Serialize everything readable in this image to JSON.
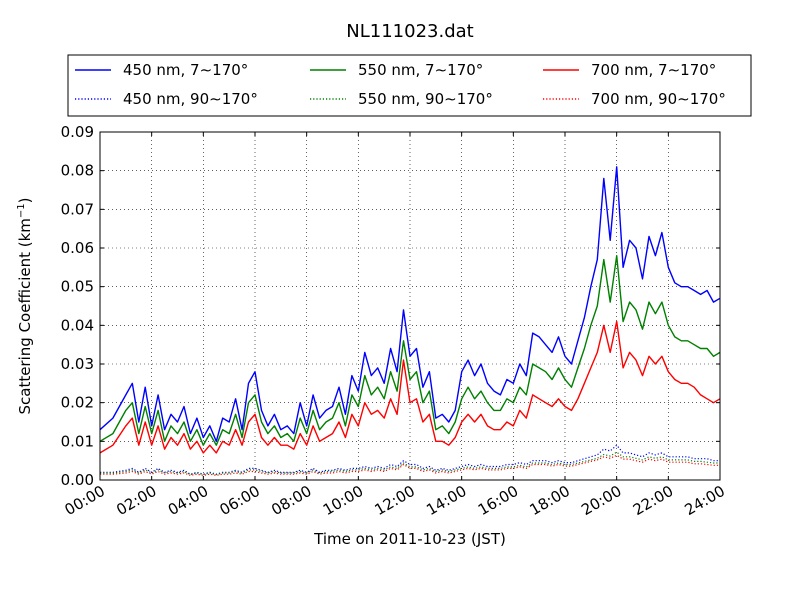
{
  "chart_data": {
    "type": "line",
    "title": "NL111023.dat",
    "xlabel": "Time on 2011-10-23 (JST)",
    "ylabel_main": "Scattering Coefficient (km",
    "ylabel_sup": "−1",
    "ylabel_tail": ")",
    "xlim": [
      0,
      24
    ],
    "ylim": [
      0,
      0.09
    ],
    "x_ticks": [
      0,
      2,
      4,
      6,
      8,
      10,
      12,
      14,
      16,
      18,
      20,
      22,
      24
    ],
    "x_tick_labels": [
      "00:00",
      "02:00",
      "04:00",
      "06:00",
      "08:00",
      "10:00",
      "12:00",
      "14:00",
      "16:00",
      "18:00",
      "20:00",
      "22:00",
      "24:00"
    ],
    "y_ticks": [
      0,
      0.01,
      0.02,
      0.03,
      0.04,
      0.05,
      0.06,
      0.07,
      0.08,
      0.09
    ],
    "y_tick_labels": [
      "0.00",
      "0.01",
      "0.02",
      "0.03",
      "0.04",
      "0.05",
      "0.06",
      "0.07",
      "0.08",
      "0.09"
    ],
    "grid": true,
    "legend_position": "top, above plot, 3 columns",
    "x": [
      0,
      0.5,
      1,
      1.25,
      1.5,
      1.75,
      2,
      2.25,
      2.5,
      2.75,
      3,
      3.25,
      3.5,
      3.75,
      4,
      4.25,
      4.5,
      4.75,
      5,
      5.25,
      5.5,
      5.75,
      6,
      6.25,
      6.5,
      6.75,
      7,
      7.25,
      7.5,
      7.75,
      8,
      8.25,
      8.5,
      8.75,
      9,
      9.25,
      9.5,
      9.75,
      10,
      10.25,
      10.5,
      10.75,
      11,
      11.25,
      11.5,
      11.75,
      12,
      12.25,
      12.5,
      12.75,
      13,
      13.25,
      13.5,
      13.75,
      14,
      14.25,
      14.5,
      14.75,
      15,
      15.25,
      15.5,
      15.75,
      16,
      16.25,
      16.5,
      16.75,
      17,
      17.25,
      17.5,
      17.75,
      18,
      18.25,
      18.5,
      18.75,
      19,
      19.25,
      19.5,
      19.75,
      20,
      20.25,
      20.5,
      20.75,
      21,
      21.25,
      21.5,
      21.75,
      22,
      22.25,
      22.5,
      22.75,
      23,
      23.25,
      23.5,
      23.75,
      24
    ],
    "series": [
      {
        "name": "450 nm, 7∼170°",
        "color": "#0000ff",
        "style": "solid",
        "values": [
          0.013,
          0.016,
          0.022,
          0.025,
          0.015,
          0.024,
          0.014,
          0.022,
          0.013,
          0.017,
          0.015,
          0.019,
          0.012,
          0.016,
          0.011,
          0.014,
          0.01,
          0.016,
          0.015,
          0.021,
          0.013,
          0.025,
          0.028,
          0.018,
          0.014,
          0.017,
          0.013,
          0.014,
          0.012,
          0.02,
          0.014,
          0.022,
          0.016,
          0.018,
          0.019,
          0.024,
          0.017,
          0.027,
          0.023,
          0.033,
          0.027,
          0.029,
          0.025,
          0.034,
          0.028,
          0.044,
          0.032,
          0.034,
          0.024,
          0.028,
          0.016,
          0.017,
          0.015,
          0.018,
          0.028,
          0.031,
          0.027,
          0.03,
          0.025,
          0.023,
          0.022,
          0.026,
          0.025,
          0.03,
          0.027,
          0.038,
          0.037,
          0.035,
          0.033,
          0.037,
          0.032,
          0.03,
          0.036,
          0.042,
          0.05,
          0.057,
          0.078,
          0.062,
          0.081,
          0.055,
          0.062,
          0.06,
          0.052,
          0.063,
          0.058,
          0.064,
          0.055,
          0.051,
          0.05,
          0.05,
          0.049,
          0.048,
          0.049,
          0.046,
          0.047
        ]
      },
      {
        "name": "550 nm, 7∼170°",
        "color": "#008000",
        "style": "solid",
        "values": [
          0.01,
          0.012,
          0.018,
          0.02,
          0.012,
          0.019,
          0.012,
          0.018,
          0.01,
          0.014,
          0.012,
          0.015,
          0.01,
          0.013,
          0.009,
          0.012,
          0.009,
          0.013,
          0.012,
          0.017,
          0.011,
          0.02,
          0.022,
          0.015,
          0.012,
          0.014,
          0.011,
          0.012,
          0.01,
          0.016,
          0.012,
          0.018,
          0.013,
          0.015,
          0.016,
          0.02,
          0.014,
          0.022,
          0.019,
          0.027,
          0.022,
          0.024,
          0.021,
          0.028,
          0.023,
          0.036,
          0.026,
          0.028,
          0.02,
          0.023,
          0.013,
          0.014,
          0.012,
          0.015,
          0.021,
          0.024,
          0.021,
          0.023,
          0.02,
          0.018,
          0.018,
          0.021,
          0.02,
          0.024,
          0.022,
          0.03,
          0.029,
          0.028,
          0.026,
          0.029,
          0.026,
          0.024,
          0.029,
          0.034,
          0.04,
          0.045,
          0.057,
          0.046,
          0.058,
          0.041,
          0.046,
          0.044,
          0.039,
          0.046,
          0.043,
          0.046,
          0.04,
          0.037,
          0.036,
          0.036,
          0.035,
          0.034,
          0.034,
          0.032,
          0.033
        ]
      },
      {
        "name": "700 nm, 7∼170°",
        "color": "#ff0000",
        "style": "solid",
        "values": [
          0.007,
          0.009,
          0.014,
          0.016,
          0.009,
          0.015,
          0.009,
          0.014,
          0.008,
          0.011,
          0.009,
          0.012,
          0.008,
          0.01,
          0.007,
          0.009,
          0.007,
          0.01,
          0.009,
          0.013,
          0.009,
          0.015,
          0.017,
          0.011,
          0.009,
          0.011,
          0.009,
          0.009,
          0.008,
          0.012,
          0.009,
          0.014,
          0.01,
          0.011,
          0.012,
          0.015,
          0.011,
          0.017,
          0.014,
          0.02,
          0.017,
          0.018,
          0.016,
          0.021,
          0.017,
          0.031,
          0.02,
          0.021,
          0.015,
          0.017,
          0.01,
          0.01,
          0.009,
          0.011,
          0.015,
          0.017,
          0.015,
          0.017,
          0.014,
          0.013,
          0.013,
          0.015,
          0.014,
          0.018,
          0.016,
          0.022,
          0.021,
          0.02,
          0.019,
          0.021,
          0.019,
          0.018,
          0.021,
          0.025,
          0.029,
          0.033,
          0.04,
          0.033,
          0.041,
          0.029,
          0.033,
          0.031,
          0.027,
          0.032,
          0.03,
          0.032,
          0.028,
          0.026,
          0.025,
          0.025,
          0.024,
          0.022,
          0.021,
          0.02,
          0.021
        ]
      },
      {
        "name": "450 nm, 90∼170°",
        "color": "#0000ff",
        "style": "dotted",
        "values": [
          0.002,
          0.002,
          0.0025,
          0.003,
          0.002,
          0.003,
          0.002,
          0.003,
          0.002,
          0.0025,
          0.002,
          0.0025,
          0.0015,
          0.002,
          0.0015,
          0.002,
          0.0015,
          0.002,
          0.002,
          0.0025,
          0.002,
          0.003,
          0.003,
          0.0025,
          0.002,
          0.0025,
          0.002,
          0.002,
          0.002,
          0.0025,
          0.002,
          0.003,
          0.002,
          0.0025,
          0.0025,
          0.003,
          0.0025,
          0.003,
          0.003,
          0.0035,
          0.003,
          0.0035,
          0.003,
          0.004,
          0.0035,
          0.005,
          0.004,
          0.004,
          0.003,
          0.0035,
          0.0025,
          0.003,
          0.0025,
          0.003,
          0.0035,
          0.004,
          0.0035,
          0.004,
          0.0035,
          0.0035,
          0.0035,
          0.004,
          0.004,
          0.0045,
          0.004,
          0.005,
          0.005,
          0.005,
          0.0045,
          0.005,
          0.0045,
          0.0045,
          0.005,
          0.0055,
          0.006,
          0.0065,
          0.008,
          0.0075,
          0.009,
          0.007,
          0.007,
          0.0065,
          0.006,
          0.007,
          0.0065,
          0.007,
          0.006,
          0.006,
          0.006,
          0.006,
          0.0055,
          0.0055,
          0.0055,
          0.005,
          0.005
        ]
      },
      {
        "name": "550 nm, 90∼170°",
        "color": "#008000",
        "style": "dotted",
        "values": [
          0.0018,
          0.0018,
          0.0022,
          0.0026,
          0.0018,
          0.0026,
          0.0018,
          0.0026,
          0.0018,
          0.0022,
          0.0018,
          0.0022,
          0.0014,
          0.0018,
          0.0014,
          0.0018,
          0.0014,
          0.0018,
          0.0018,
          0.0022,
          0.0018,
          0.0026,
          0.0026,
          0.0022,
          0.0018,
          0.0022,
          0.0018,
          0.0018,
          0.0018,
          0.0022,
          0.0018,
          0.0026,
          0.0018,
          0.0022,
          0.0022,
          0.0026,
          0.0022,
          0.0026,
          0.0026,
          0.003,
          0.0026,
          0.003,
          0.0026,
          0.0034,
          0.003,
          0.0044,
          0.0034,
          0.0034,
          0.0026,
          0.003,
          0.0022,
          0.0026,
          0.0022,
          0.0026,
          0.003,
          0.0034,
          0.003,
          0.0034,
          0.003,
          0.003,
          0.003,
          0.0034,
          0.0034,
          0.0038,
          0.0034,
          0.0044,
          0.0044,
          0.0044,
          0.004,
          0.0044,
          0.004,
          0.004,
          0.0044,
          0.0048,
          0.0052,
          0.0056,
          0.0066,
          0.0062,
          0.0072,
          0.006,
          0.006,
          0.0056,
          0.0052,
          0.006,
          0.0056,
          0.006,
          0.0052,
          0.0052,
          0.0052,
          0.0052,
          0.0048,
          0.0048,
          0.0046,
          0.0044,
          0.0044
        ]
      },
      {
        "name": "700 nm, 90∼170°",
        "color": "#ff0000",
        "style": "dotted",
        "values": [
          0.0015,
          0.0015,
          0.0018,
          0.0022,
          0.0015,
          0.0022,
          0.0015,
          0.0022,
          0.0015,
          0.0018,
          0.0015,
          0.0018,
          0.0012,
          0.0015,
          0.0012,
          0.0015,
          0.0012,
          0.0015,
          0.0015,
          0.0018,
          0.0015,
          0.0022,
          0.0022,
          0.0018,
          0.0015,
          0.0018,
          0.0015,
          0.0015,
          0.0015,
          0.0018,
          0.0015,
          0.0022,
          0.0015,
          0.0018,
          0.0018,
          0.0022,
          0.0018,
          0.0022,
          0.0022,
          0.0026,
          0.0022,
          0.0026,
          0.0022,
          0.003,
          0.0026,
          0.004,
          0.003,
          0.003,
          0.0022,
          0.0026,
          0.0018,
          0.0022,
          0.0018,
          0.0022,
          0.0026,
          0.003,
          0.0026,
          0.003,
          0.0026,
          0.0026,
          0.0026,
          0.003,
          0.003,
          0.0034,
          0.003,
          0.004,
          0.004,
          0.004,
          0.0036,
          0.004,
          0.0036,
          0.0036,
          0.004,
          0.0044,
          0.0048,
          0.0052,
          0.006,
          0.0056,
          0.0064,
          0.0054,
          0.0054,
          0.005,
          0.0046,
          0.0054,
          0.005,
          0.0054,
          0.0046,
          0.0046,
          0.0046,
          0.0046,
          0.0042,
          0.0042,
          0.004,
          0.0038,
          0.0038
        ]
      }
    ]
  }
}
